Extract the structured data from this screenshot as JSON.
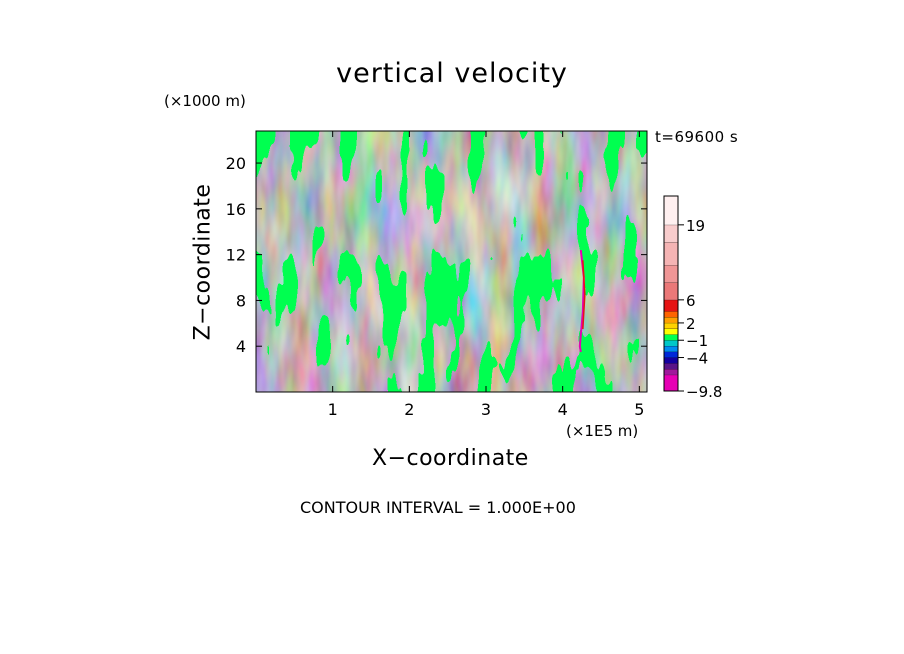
{
  "chart_data": {
    "type": "heatmap",
    "title": "vertical velocity",
    "xlabel": "X−coordinate",
    "ylabel": "Z−coordinate",
    "x_unit": "(×1E5 m)",
    "y_unit": "(×1000 m)",
    "time_label": "t=69600 s",
    "contour_interval_text": "CONTOUR INTERVAL = 1.000E+00",
    "xlim": [
      0,
      5.1
    ],
    "ylim": [
      0,
      22.8
    ],
    "x_ticks": [
      1,
      2,
      3,
      4,
      5
    ],
    "x_tick_labels": [
      "1",
      "2",
      "3",
      "4",
      "5"
    ],
    "y_ticks": [
      4,
      8,
      12,
      16,
      20
    ],
    "y_tick_labels": [
      "4",
      "8",
      "12",
      "16",
      "20"
    ],
    "colorbar": {
      "range": [
        -9.8,
        24
      ],
      "levels": [
        -9.8,
        -7,
        -6,
        -5,
        -4,
        -3,
        -2,
        -1,
        0,
        1,
        2,
        3,
        4,
        6,
        9,
        12,
        16,
        19,
        24
      ],
      "colors": [
        "#e600b4",
        "#a0189c",
        "#5a1488",
        "#1400a0",
        "#0028d8",
        "#008cf0",
        "#00c8c8",
        "#00ff50",
        "#ffff00",
        "#ffd200",
        "#ffa000",
        "#ff6400",
        "#e61414",
        "#eb7878",
        "#f09696",
        "#f5b4b4",
        "#f8cccc",
        "#fff0f0"
      ],
      "labeled_values": [
        19,
        6,
        2,
        -1,
        -4,
        -9.8
      ],
      "labels": [
        "19",
        "6",
        "2",
        "−1",
        "−4",
        "−9.8"
      ]
    },
    "field_description_colors": {
      "updraft_weak": "#ffff00",
      "downdraft_weak": "#00ff50",
      "strong_updraft": "#e61414",
      "strong_downdraft": "#e600b4"
    },
    "grid": false
  }
}
